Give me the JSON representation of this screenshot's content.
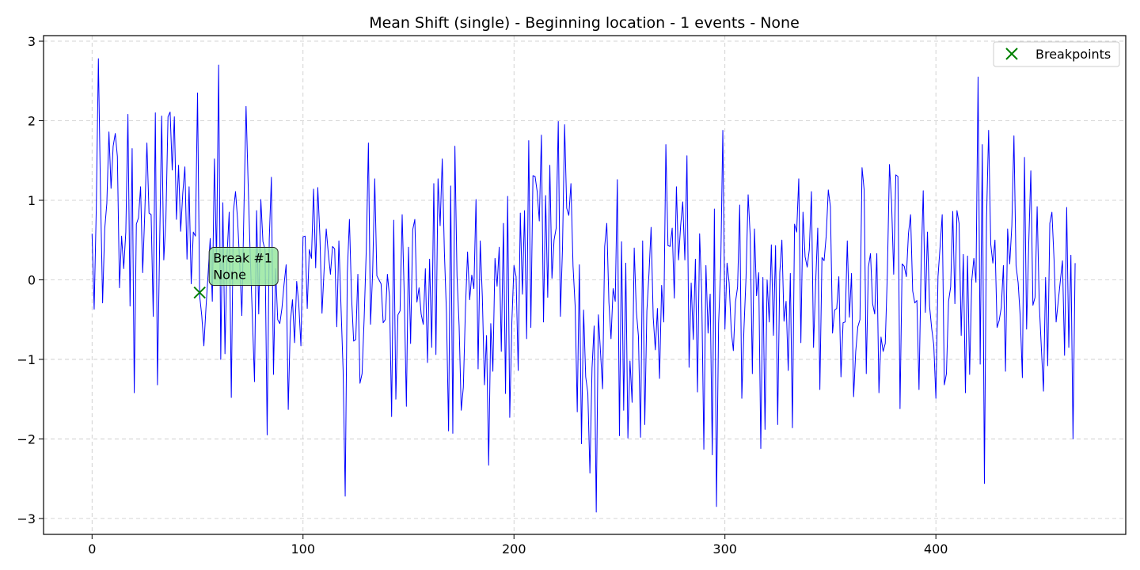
{
  "chart_data": {
    "type": "line",
    "title": "Mean Shift (single) - Beginning location - 1 events - None",
    "xlabel": "",
    "ylabel": "",
    "xlim": [
      -23,
      490
    ],
    "ylim": [
      -3.2,
      3.07
    ],
    "x_ticks": [
      0,
      100,
      200,
      300,
      400
    ],
    "x_tick_labels": [
      "0",
      "100",
      "200",
      "300",
      "400"
    ],
    "y_ticks": [
      -3,
      -2,
      -1,
      0,
      1,
      2,
      3
    ],
    "y_tick_labels": [
      "−3",
      "−2",
      "−1",
      "0",
      "1",
      "2",
      "3"
    ],
    "grid": true,
    "legend_position": "top-right",
    "line_color": "#0000ff",
    "marker_color": "#008000",
    "annotation_fill": "#98e8a0",
    "series": [
      {
        "name": "",
        "x_start": 0,
        "x_step": 1,
        "values": [
          0.58,
          -0.37,
          0.9,
          2.78,
          1.1,
          -0.29,
          0.64,
          0.96,
          1.86,
          1.15,
          1.68,
          1.84,
          1.55,
          -0.1,
          0.55,
          0.14,
          0.6,
          2.08,
          -0.33,
          1.65,
          -1.42,
          0.7,
          0.78,
          1.17,
          0.09,
          0.85,
          1.72,
          0.84,
          0.82,
          -0.46,
          2.1,
          -1.32,
          0.38,
          2.06,
          0.25,
          0.76,
          2.05,
          2.11,
          1.38,
          2.05,
          0.76,
          1.44,
          0.61,
          1.09,
          1.42,
          0.26,
          1.17,
          -0.05,
          0.6,
          0.55,
          2.35,
          -0.2,
          -0.45,
          -0.83,
          -0.35,
          0.07,
          0.52,
          -0.27,
          1.52,
          0.23,
          2.7,
          -1.0,
          0.97,
          -0.93,
          0.32,
          0.85,
          -1.48,
          0.86,
          1.11,
          0.75,
          0.2,
          -0.45,
          0.9,
          2.18,
          1.2,
          0.28,
          -0.47,
          -1.28,
          0.87,
          -0.43,
          1.01,
          0.48,
          0.38,
          -1.95,
          0.51,
          1.29,
          -1.19,
          0.14,
          -0.5,
          -0.55,
          -0.36,
          -0.06,
          0.19,
          -1.63,
          -0.53,
          -0.25,
          -0.79,
          -0.02,
          -0.31,
          -0.83,
          0.54,
          0.55,
          -0.36,
          0.38,
          0.27,
          1.14,
          0.15,
          1.16,
          0.55,
          -0.42,
          0.13,
          0.64,
          0.33,
          0.07,
          0.42,
          0.39,
          -0.59,
          0.49,
          -0.33,
          -1.13,
          -2.72,
          0.09,
          0.76,
          -0.21,
          -0.77,
          -0.75,
          0.07,
          -1.3,
          -1.18,
          -0.47,
          0.39,
          1.72,
          -0.56,
          0.09,
          1.27,
          0.05,
          0.0,
          -0.05,
          -0.54,
          -0.5,
          0.07,
          -0.21,
          -1.72,
          0.75,
          -1.5,
          -0.44,
          -0.39,
          0.82,
          -0.21,
          -1.59,
          0.41,
          -0.8,
          0.63,
          0.76,
          -0.28,
          -0.1,
          -0.43,
          -0.56,
          0.14,
          -1.04,
          0.26,
          -0.85,
          1.21,
          -0.94,
          1.27,
          0.68,
          1.52,
          0.36,
          -0.42,
          -1.9,
          1.18,
          -1.93,
          1.68,
          0.05,
          -0.58,
          -1.64,
          -1.35,
          -0.36,
          0.35,
          -0.25,
          0.06,
          -0.11,
          1.01,
          -1.12,
          0.49,
          -0.21,
          -1.32,
          -0.7,
          -2.33,
          -0.55,
          -1.15,
          0.27,
          -0.08,
          0.41,
          -0.9,
          0.71,
          -1.43,
          1.05,
          -1.73,
          -0.53,
          0.18,
          0.04,
          -1.14,
          0.84,
          -0.18,
          0.87,
          -0.74,
          1.75,
          -0.6,
          1.31,
          1.3,
          1.11,
          0.74,
          1.82,
          -0.53,
          1.06,
          -0.22,
          1.44,
          0.02,
          0.5,
          0.65,
          1.99,
          -0.46,
          0.4,
          1.95,
          0.9,
          0.81,
          1.21,
          0.17,
          -0.33,
          -1.66,
          0.19,
          -2.06,
          -0.38,
          -1.22,
          -1.42,
          -2.43,
          -1.11,
          -0.58,
          -2.92,
          -0.44,
          -0.9,
          -1.37,
          0.42,
          0.71,
          -0.28,
          -0.74,
          -0.11,
          -0.27,
          1.26,
          -1.96,
          0.48,
          -1.64,
          0.21,
          -1.99,
          -1.02,
          -1.54,
          0.4,
          -0.39,
          -0.71,
          -1.98,
          0.49,
          -1.82,
          -0.39,
          0.08,
          0.66,
          -0.47,
          -0.88,
          -0.36,
          -1.24,
          -0.07,
          -0.53,
          1.7,
          0.43,
          0.42,
          0.65,
          -0.23,
          1.17,
          0.25,
          0.68,
          0.98,
          0.25,
          1.56,
          -1.1,
          -0.04,
          -0.75,
          0.26,
          -1.41,
          0.58,
          -0.18,
          -2.13,
          0.18,
          -0.67,
          -0.18,
          -2.2,
          0.89,
          -2.85,
          -0.55,
          0.16,
          1.88,
          -0.62,
          0.21,
          -0.04,
          -0.64,
          -0.89,
          -0.28,
          -0.09,
          0.94,
          -1.49,
          -0.63,
          0.03,
          1.07,
          0.54,
          -1.18,
          0.64,
          -0.2,
          0.09,
          -2.12,
          0.03,
          -1.88,
          0.0,
          -0.53,
          0.44,
          -0.7,
          0.43,
          -1.82,
          0.09,
          0.5,
          -0.52,
          -0.27,
          -1.14,
          0.08,
          -1.86,
          0.7,
          0.6,
          1.27,
          -0.79,
          0.85,
          0.29,
          0.16,
          0.38,
          1.11,
          -0.85,
          -0.04,
          0.65,
          -1.38,
          0.28,
          0.24,
          0.55,
          1.13,
          0.92,
          -0.67,
          -0.38,
          -0.36,
          0.04,
          -1.22,
          -0.54,
          -0.53,
          0.49,
          -0.47,
          0.08,
          -1.47,
          -0.9,
          -0.59,
          -0.5,
          1.41,
          1.13,
          -1.18,
          0.16,
          0.33,
          -0.3,
          -0.43,
          0.33,
          -1.42,
          -0.72,
          -0.9,
          -0.8,
          0.09,
          1.45,
          0.96,
          0.07,
          1.32,
          1.3,
          -1.62,
          0.2,
          0.17,
          0.04,
          0.58,
          0.82,
          -0.14,
          -0.29,
          -0.26,
          -1.38,
          0.19,
          1.12,
          -0.41,
          0.6,
          -0.33,
          -0.61,
          -0.82,
          -1.49,
          0.04,
          0.42,
          0.82,
          -1.32,
          -1.18,
          -0.27,
          -0.09,
          0.86,
          -0.3,
          0.87,
          0.71,
          -0.7,
          0.32,
          -1.42,
          0.3,
          -1.19,
          -0.01,
          0.27,
          -0.03,
          2.55,
          -1.06,
          1.7,
          -2.56,
          0.76,
          1.88,
          0.45,
          0.21,
          0.5,
          -0.6,
          -0.51,
          -0.35,
          0.18,
          -1.15,
          0.64,
          0.2,
          0.68,
          1.81,
          0.18,
          -0.04,
          -0.47,
          -1.23,
          1.54,
          -0.62,
          0.44,
          1.37,
          -0.32,
          -0.22,
          0.92,
          -0.3,
          -0.86,
          -1.4,
          0.03,
          -1.08,
          0.71,
          0.85,
          0.26,
          -0.53,
          -0.27,
          -0.01,
          0.24,
          -0.95,
          0.91,
          -0.85,
          0.31,
          -2.0,
          0.21
        ]
      }
    ],
    "breakpoints": [
      {
        "x": 51,
        "y": -0.16,
        "label_line1": "Break #1",
        "label_line2": "None"
      }
    ],
    "legend_items": [
      {
        "label": "Breakpoints",
        "marker": "x",
        "color": "#008000"
      }
    ]
  }
}
